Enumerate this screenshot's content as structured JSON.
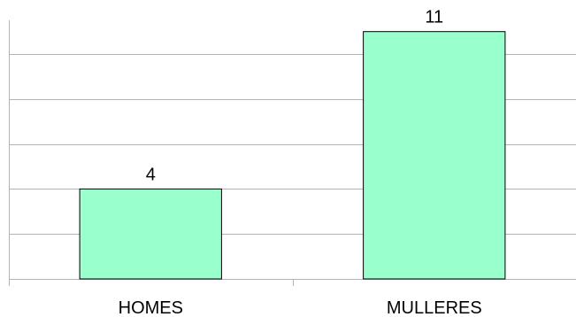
{
  "chart_data": {
    "type": "bar",
    "categories": [
      "HOMES",
      "MULLERES"
    ],
    "values": [
      4,
      11
    ],
    "data_labels": [
      "4",
      "11"
    ],
    "ylim": [
      0,
      11.5
    ],
    "y_gridline_step": 2,
    "grid": true,
    "legend": "none",
    "colors": {
      "bar_fill": "#99ffcc",
      "bar_stroke": "#000000",
      "grid": "#b3b3b3",
      "axis": "#b3b3b3"
    }
  }
}
